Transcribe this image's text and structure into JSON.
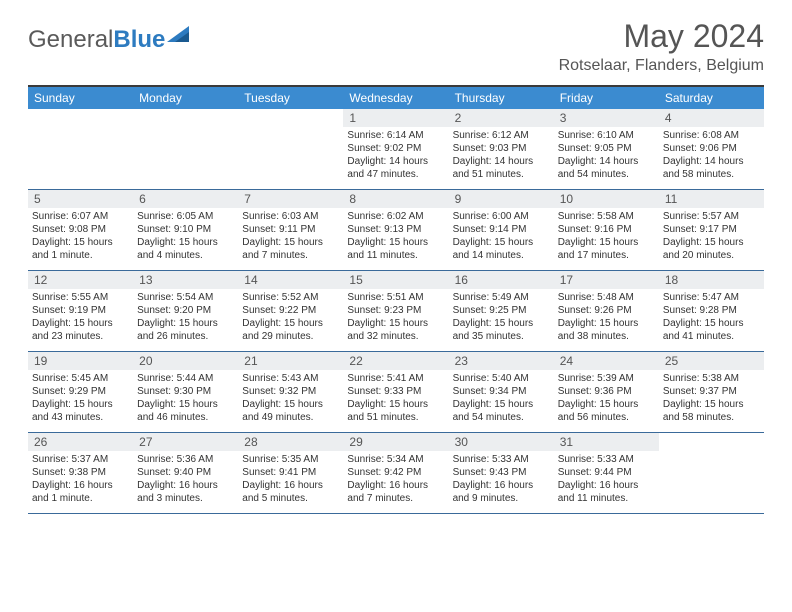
{
  "logo": {
    "text1": "General",
    "text2": "Blue"
  },
  "title": "May 2024",
  "location": "Rotselaar, Flanders, Belgium",
  "colors": {
    "header_bg": "#3b8bd0",
    "daynum_bg": "#eceef0",
    "border": "#3a6a9a",
    "logo_blue": "#2d7bc0"
  },
  "dayNames": [
    "Sunday",
    "Monday",
    "Tuesday",
    "Wednesday",
    "Thursday",
    "Friday",
    "Saturday"
  ],
  "weeks": [
    [
      {
        "n": "",
        "sr": "",
        "ss": "",
        "dl": ""
      },
      {
        "n": "",
        "sr": "",
        "ss": "",
        "dl": ""
      },
      {
        "n": "",
        "sr": "",
        "ss": "",
        "dl": ""
      },
      {
        "n": "1",
        "sr": "Sunrise: 6:14 AM",
        "ss": "Sunset: 9:02 PM",
        "dl": "Daylight: 14 hours and 47 minutes."
      },
      {
        "n": "2",
        "sr": "Sunrise: 6:12 AM",
        "ss": "Sunset: 9:03 PM",
        "dl": "Daylight: 14 hours and 51 minutes."
      },
      {
        "n": "3",
        "sr": "Sunrise: 6:10 AM",
        "ss": "Sunset: 9:05 PM",
        "dl": "Daylight: 14 hours and 54 minutes."
      },
      {
        "n": "4",
        "sr": "Sunrise: 6:08 AM",
        "ss": "Sunset: 9:06 PM",
        "dl": "Daylight: 14 hours and 58 minutes."
      }
    ],
    [
      {
        "n": "5",
        "sr": "Sunrise: 6:07 AM",
        "ss": "Sunset: 9:08 PM",
        "dl": "Daylight: 15 hours and 1 minute."
      },
      {
        "n": "6",
        "sr": "Sunrise: 6:05 AM",
        "ss": "Sunset: 9:10 PM",
        "dl": "Daylight: 15 hours and 4 minutes."
      },
      {
        "n": "7",
        "sr": "Sunrise: 6:03 AM",
        "ss": "Sunset: 9:11 PM",
        "dl": "Daylight: 15 hours and 7 minutes."
      },
      {
        "n": "8",
        "sr": "Sunrise: 6:02 AM",
        "ss": "Sunset: 9:13 PM",
        "dl": "Daylight: 15 hours and 11 minutes."
      },
      {
        "n": "9",
        "sr": "Sunrise: 6:00 AM",
        "ss": "Sunset: 9:14 PM",
        "dl": "Daylight: 15 hours and 14 minutes."
      },
      {
        "n": "10",
        "sr": "Sunrise: 5:58 AM",
        "ss": "Sunset: 9:16 PM",
        "dl": "Daylight: 15 hours and 17 minutes."
      },
      {
        "n": "11",
        "sr": "Sunrise: 5:57 AM",
        "ss": "Sunset: 9:17 PM",
        "dl": "Daylight: 15 hours and 20 minutes."
      }
    ],
    [
      {
        "n": "12",
        "sr": "Sunrise: 5:55 AM",
        "ss": "Sunset: 9:19 PM",
        "dl": "Daylight: 15 hours and 23 minutes."
      },
      {
        "n": "13",
        "sr": "Sunrise: 5:54 AM",
        "ss": "Sunset: 9:20 PM",
        "dl": "Daylight: 15 hours and 26 minutes."
      },
      {
        "n": "14",
        "sr": "Sunrise: 5:52 AM",
        "ss": "Sunset: 9:22 PM",
        "dl": "Daylight: 15 hours and 29 minutes."
      },
      {
        "n": "15",
        "sr": "Sunrise: 5:51 AM",
        "ss": "Sunset: 9:23 PM",
        "dl": "Daylight: 15 hours and 32 minutes."
      },
      {
        "n": "16",
        "sr": "Sunrise: 5:49 AM",
        "ss": "Sunset: 9:25 PM",
        "dl": "Daylight: 15 hours and 35 minutes."
      },
      {
        "n": "17",
        "sr": "Sunrise: 5:48 AM",
        "ss": "Sunset: 9:26 PM",
        "dl": "Daylight: 15 hours and 38 minutes."
      },
      {
        "n": "18",
        "sr": "Sunrise: 5:47 AM",
        "ss": "Sunset: 9:28 PM",
        "dl": "Daylight: 15 hours and 41 minutes."
      }
    ],
    [
      {
        "n": "19",
        "sr": "Sunrise: 5:45 AM",
        "ss": "Sunset: 9:29 PM",
        "dl": "Daylight: 15 hours and 43 minutes."
      },
      {
        "n": "20",
        "sr": "Sunrise: 5:44 AM",
        "ss": "Sunset: 9:30 PM",
        "dl": "Daylight: 15 hours and 46 minutes."
      },
      {
        "n": "21",
        "sr": "Sunrise: 5:43 AM",
        "ss": "Sunset: 9:32 PM",
        "dl": "Daylight: 15 hours and 49 minutes."
      },
      {
        "n": "22",
        "sr": "Sunrise: 5:41 AM",
        "ss": "Sunset: 9:33 PM",
        "dl": "Daylight: 15 hours and 51 minutes."
      },
      {
        "n": "23",
        "sr": "Sunrise: 5:40 AM",
        "ss": "Sunset: 9:34 PM",
        "dl": "Daylight: 15 hours and 54 minutes."
      },
      {
        "n": "24",
        "sr": "Sunrise: 5:39 AM",
        "ss": "Sunset: 9:36 PM",
        "dl": "Daylight: 15 hours and 56 minutes."
      },
      {
        "n": "25",
        "sr": "Sunrise: 5:38 AM",
        "ss": "Sunset: 9:37 PM",
        "dl": "Daylight: 15 hours and 58 minutes."
      }
    ],
    [
      {
        "n": "26",
        "sr": "Sunrise: 5:37 AM",
        "ss": "Sunset: 9:38 PM",
        "dl": "Daylight: 16 hours and 1 minute."
      },
      {
        "n": "27",
        "sr": "Sunrise: 5:36 AM",
        "ss": "Sunset: 9:40 PM",
        "dl": "Daylight: 16 hours and 3 minutes."
      },
      {
        "n": "28",
        "sr": "Sunrise: 5:35 AM",
        "ss": "Sunset: 9:41 PM",
        "dl": "Daylight: 16 hours and 5 minutes."
      },
      {
        "n": "29",
        "sr": "Sunrise: 5:34 AM",
        "ss": "Sunset: 9:42 PM",
        "dl": "Daylight: 16 hours and 7 minutes."
      },
      {
        "n": "30",
        "sr": "Sunrise: 5:33 AM",
        "ss": "Sunset: 9:43 PM",
        "dl": "Daylight: 16 hours and 9 minutes."
      },
      {
        "n": "31",
        "sr": "Sunrise: 5:33 AM",
        "ss": "Sunset: 9:44 PM",
        "dl": "Daylight: 16 hours and 11 minutes."
      },
      {
        "n": "",
        "sr": "",
        "ss": "",
        "dl": ""
      }
    ]
  ]
}
